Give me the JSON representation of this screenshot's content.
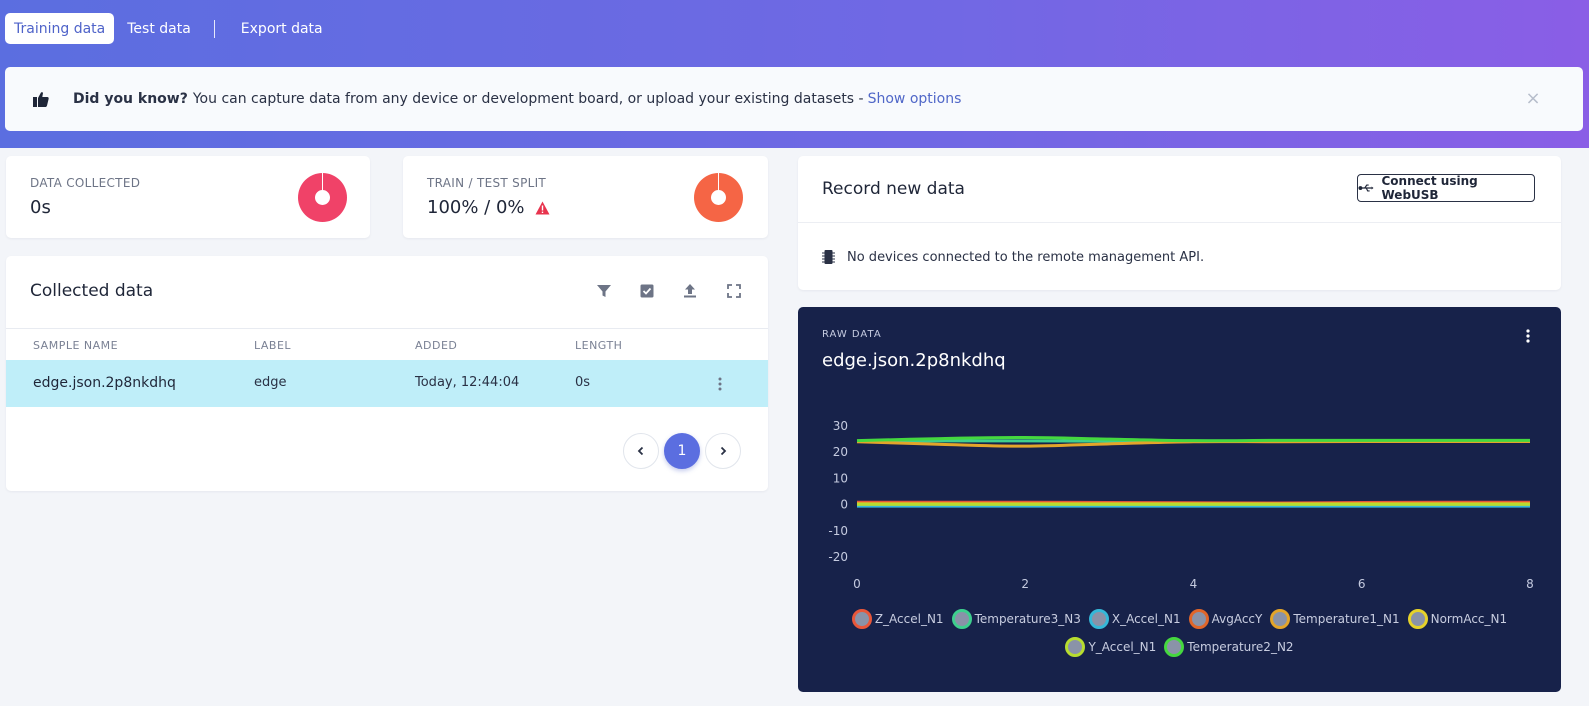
{
  "tabs": [
    {
      "label": "Training data",
      "active": true
    },
    {
      "label": "Test data",
      "active": false
    },
    {
      "label": "Export data",
      "active": false
    }
  ],
  "notice": {
    "icon": "thumbs-up-icon",
    "bold": "Did you know?",
    "text": "You can capture data from any device or development board, or upload your existing datasets -",
    "link": "Show options",
    "close": "×"
  },
  "stats": {
    "data_collected": {
      "label": "DATA COLLECTED",
      "value": "0s",
      "color": "#f04268"
    },
    "split": {
      "label": "TRAIN / TEST SPLIT",
      "value": "100% / 0%",
      "color": "#f56545",
      "warning_icon": "warning-icon"
    }
  },
  "collected": {
    "title": "Collected data",
    "icons": [
      "filter-icon",
      "checkbox-icon",
      "upload-icon",
      "expand-icon"
    ],
    "columns": [
      "SAMPLE NAME",
      "LABEL",
      "ADDED",
      "LENGTH"
    ],
    "rows": [
      {
        "name": "edge.json.2p8nkdhq",
        "label": "edge",
        "added": "Today, 12:44:04",
        "length": "0s"
      }
    ],
    "pagination": {
      "current": "1"
    }
  },
  "record": {
    "title": "Record new data",
    "webusb_label": "Connect using WebUSB",
    "no_devices": "No devices connected to the remote management API."
  },
  "raw": {
    "label": "RAW DATA",
    "title": "edge.json.2p8nkdhq"
  },
  "chart_data": {
    "type": "line",
    "title": "edge.json.2p8nkdhq",
    "x": [
      0,
      1,
      2,
      3,
      4,
      5,
      6,
      7,
      8
    ],
    "xticks": [
      0,
      2,
      4,
      6,
      8
    ],
    "yticks": [
      30,
      20,
      10,
      0,
      -10,
      -20
    ],
    "xlim": [
      0,
      8
    ],
    "ylim": [
      -20,
      30
    ],
    "grid": false,
    "legend_position": "bottom",
    "series": [
      {
        "name": "Z_Accel_N1",
        "color": "#e8573a",
        "values": [
          0.9,
          0.9,
          0.9,
          0.8,
          0.7,
          0.6,
          0.8,
          0.9,
          0.9
        ]
      },
      {
        "name": "Temperature3_N3",
        "color": "#3ecf8e",
        "values": [
          24.2,
          24.3,
          24.3,
          24.2,
          24.3,
          24.3,
          24.3,
          24.3,
          24.3
        ]
      },
      {
        "name": "X_Accel_N1",
        "color": "#35b8d8",
        "values": [
          -0.6,
          -0.6,
          -0.6,
          -0.6,
          -0.6,
          -0.6,
          -0.6,
          -0.6,
          -0.6
        ]
      },
      {
        "name": "AvgAccY",
        "color": "#e0662a",
        "values": [
          0.5,
          0.5,
          0.5,
          0.4,
          0.4,
          0.3,
          0.4,
          0.5,
          0.5
        ]
      },
      {
        "name": "Temperature1_N1",
        "color": "#e3a52a",
        "values": [
          24.0,
          23.0,
          22.3,
          23.2,
          24.0,
          24.0,
          24.1,
          24.1,
          24.1
        ]
      },
      {
        "name": "NormAcc_N1",
        "color": "#e6d22a",
        "values": [
          0.3,
          0.3,
          0.3,
          0.3,
          0.3,
          0.3,
          0.3,
          0.3,
          0.3
        ]
      },
      {
        "name": "Y_Accel_N1",
        "color": "#b7dd2f",
        "values": [
          0.1,
          0.1,
          0.1,
          0.1,
          0.1,
          0.1,
          0.1,
          0.1,
          0.1
        ]
      },
      {
        "name": "Temperature2_N2",
        "color": "#45d83f",
        "values": [
          24.4,
          25.2,
          25.6,
          25.0,
          24.4,
          24.5,
          24.5,
          24.5,
          24.5
        ]
      }
    ]
  }
}
